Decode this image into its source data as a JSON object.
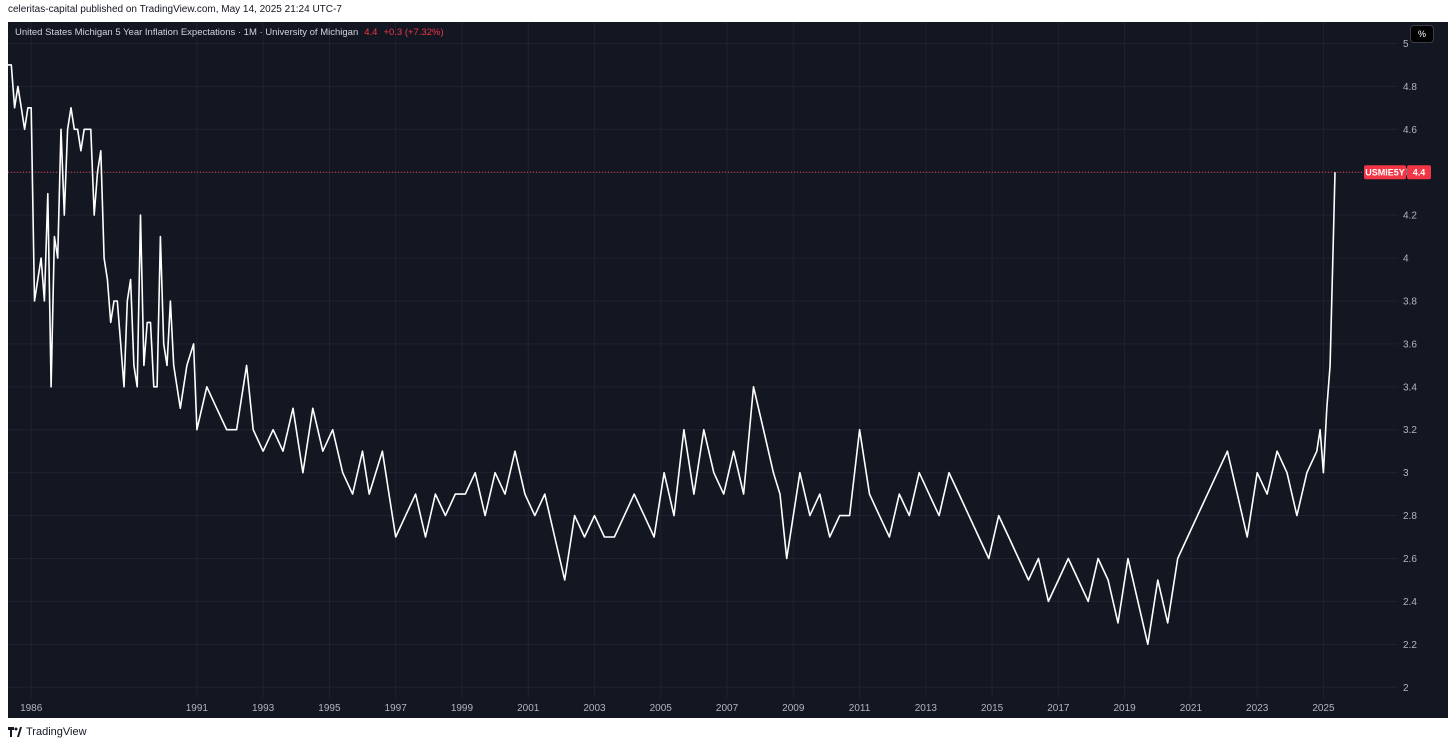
{
  "publish_info": "celeritas-capital published on TradingView.com, May 14, 2025 21:24 UTC-7",
  "legend": {
    "title": "United States Michigan 5 Year Inflation Expectations · 1M · University of Michigan",
    "value": "4.4",
    "change": "+0.3 (+7.32%)"
  },
  "unit_badge": "%",
  "footer_brand": "TradingView",
  "colors": {
    "background": "#131722",
    "grid": "#1f2330",
    "line": "#ffffff",
    "accent": "#f23645",
    "tick_text": "#b2b5be"
  },
  "chart_data": {
    "type": "line",
    "title": "United States Michigan 5 Year Inflation Expectations · 1M · University of Michigan",
    "xlabel": "",
    "ylabel": "",
    "ylim": [
      1.95,
      5.1
    ],
    "xlim": [
      1985.3,
      2027.25
    ],
    "y_ticks": [
      2,
      2.2,
      2.4,
      2.6,
      2.8,
      3,
      3.2,
      3.4,
      3.6,
      3.8,
      4,
      4.2,
      4.4,
      4.6,
      4.8,
      5
    ],
    "y_tick_labels": [
      "2",
      "2.2",
      "2.4",
      "2.6",
      "2.8",
      "3",
      "3.2",
      "3.4",
      "3.6",
      "3.8",
      "4",
      "4.2",
      "4.4",
      "4.6",
      "4.8",
      "5"
    ],
    "x_ticks": [
      1986,
      1991,
      1993,
      1995,
      1997,
      1999,
      2001,
      2003,
      2005,
      2007,
      2009,
      2011,
      2013,
      2015,
      2017,
      2019,
      2021,
      2023,
      2025
    ],
    "x_tick_labels": [
      "1986",
      "1991",
      "1993",
      "1995",
      "1997",
      "1999",
      "2001",
      "2003",
      "2005",
      "2007",
      "2009",
      "2011",
      "2013",
      "2015",
      "2017",
      "2019",
      "2021",
      "2023",
      "2025"
    ],
    "grid": true,
    "last_value": 4.4,
    "last_label": "USMIE5Y",
    "series": [
      {
        "name": "USMIE5Y",
        "x": [
          1985.3,
          1985.4,
          1985.5,
          1985.6,
          1985.7,
          1985.8,
          1985.9,
          1986.0,
          1986.1,
          1986.2,
          1986.3,
          1986.4,
          1986.5,
          1986.6,
          1986.7,
          1986.8,
          1986.9,
          1987.0,
          1987.1,
          1987.2,
          1987.3,
          1987.4,
          1987.5,
          1987.6,
          1987.7,
          1987.8,
          1987.9,
          1988.0,
          1988.1,
          1988.2,
          1988.3,
          1988.4,
          1988.5,
          1988.6,
          1988.7,
          1988.8,
          1988.9,
          1989.0,
          1989.1,
          1989.2,
          1989.3,
          1989.4,
          1989.5,
          1989.6,
          1989.7,
          1989.8,
          1989.9,
          1990.0,
          1990.1,
          1990.2,
          1990.3,
          1990.5,
          1990.7,
          1990.9,
          1991.0,
          1991.3,
          1991.6,
          1991.9,
          1992.2,
          1992.5,
          1992.7,
          1993.0,
          1993.3,
          1993.6,
          1993.9,
          1994.2,
          1994.5,
          1994.8,
          1995.1,
          1995.4,
          1995.7,
          1996.0,
          1996.2,
          1996.4,
          1996.6,
          1996.8,
          1997.0,
          1997.3,
          1997.6,
          1997.9,
          1998.2,
          1998.5,
          1998.8,
          1999.1,
          1999.4,
          1999.7,
          2000.0,
          2000.3,
          2000.6,
          2000.9,
          2001.2,
          2001.5,
          2001.8,
          2002.1,
          2002.4,
          2002.7,
          2003.0,
          2003.3,
          2003.6,
          2003.9,
          2004.2,
          2004.5,
          2004.8,
          2005.1,
          2005.4,
          2005.7,
          2006.0,
          2006.3,
          2006.6,
          2006.9,
          2007.2,
          2007.5,
          2007.8,
          2008.1,
          2008.4,
          2008.6,
          2008.8,
          2009.0,
          2009.2,
          2009.5,
          2009.8,
          2010.1,
          2010.4,
          2010.7,
          2011.0,
          2011.3,
          2011.6,
          2011.9,
          2012.2,
          2012.5,
          2012.8,
          2013.1,
          2013.4,
          2013.7,
          2014.0,
          2014.3,
          2014.6,
          2014.9,
          2015.2,
          2015.5,
          2015.8,
          2016.1,
          2016.4,
          2016.7,
          2017.0,
          2017.3,
          2017.6,
          2017.9,
          2018.2,
          2018.5,
          2018.8,
          2019.1,
          2019.4,
          2019.7,
          2020.0,
          2020.3,
          2020.6,
          2020.9,
          2021.2,
          2021.5,
          2021.8,
          2022.1,
          2022.4,
          2022.7,
          2023.0,
          2023.3,
          2023.6,
          2023.9,
          2024.2,
          2024.5,
          2024.8,
          2024.9,
          2025.0,
          2025.1,
          2025.2,
          2025.3,
          2025.35
        ],
        "values": [
          4.9,
          4.9,
          4.7,
          4.8,
          4.7,
          4.6,
          4.7,
          4.7,
          3.8,
          3.9,
          4.0,
          3.8,
          4.3,
          3.4,
          4.1,
          4.0,
          4.6,
          4.2,
          4.6,
          4.7,
          4.6,
          4.6,
          4.5,
          4.6,
          4.6,
          4.6,
          4.2,
          4.4,
          4.5,
          4.0,
          3.9,
          3.7,
          3.8,
          3.8,
          3.6,
          3.4,
          3.8,
          3.9,
          3.5,
          3.4,
          4.2,
          3.5,
          3.7,
          3.7,
          3.4,
          3.4,
          4.1,
          3.6,
          3.5,
          3.8,
          3.5,
          3.3,
          3.5,
          3.6,
          3.2,
          3.4,
          3.3,
          3.2,
          3.2,
          3.5,
          3.2,
          3.1,
          3.2,
          3.1,
          3.3,
          3.0,
          3.3,
          3.1,
          3.2,
          3.0,
          2.9,
          3.1,
          2.9,
          3.0,
          3.1,
          2.9,
          2.7,
          2.8,
          2.9,
          2.7,
          2.9,
          2.8,
          2.9,
          2.9,
          3.0,
          2.8,
          3.0,
          2.9,
          3.1,
          2.9,
          2.8,
          2.9,
          2.7,
          2.5,
          2.8,
          2.7,
          2.8,
          2.7,
          2.7,
          2.8,
          2.9,
          2.8,
          2.7,
          3.0,
          2.8,
          3.2,
          2.9,
          3.2,
          3.0,
          2.9,
          3.1,
          2.9,
          3.4,
          3.2,
          3.0,
          2.9,
          2.6,
          2.8,
          3.0,
          2.8,
          2.9,
          2.7,
          2.8,
          2.8,
          3.2,
          2.9,
          2.8,
          2.7,
          2.9,
          2.8,
          3.0,
          2.9,
          2.8,
          3.0,
          2.9,
          2.8,
          2.7,
          2.6,
          2.8,
          2.7,
          2.6,
          2.5,
          2.6,
          2.4,
          2.5,
          2.6,
          2.5,
          2.4,
          2.6,
          2.5,
          2.3,
          2.6,
          2.4,
          2.2,
          2.5,
          2.3,
          2.6,
          2.7,
          2.8,
          2.9,
          3.0,
          3.1,
          2.9,
          2.7,
          3.0,
          2.9,
          3.1,
          3.0,
          2.8,
          3.0,
          3.1,
          3.2,
          3.0,
          3.3,
          3.5,
          4.1,
          4.4
        ]
      }
    ]
  }
}
